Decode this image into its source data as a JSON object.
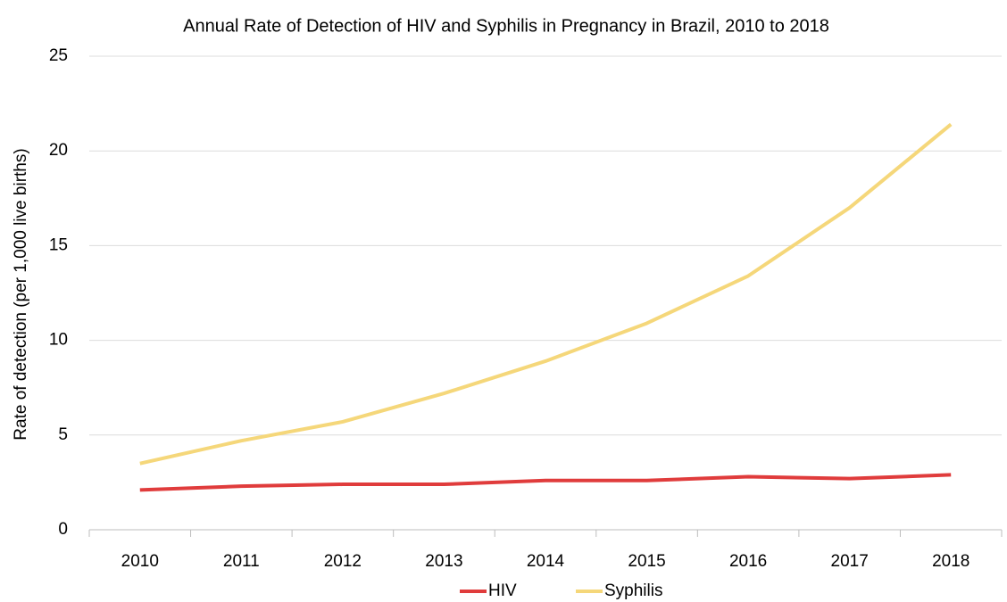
{
  "chart_data": {
    "type": "line",
    "title": "Annual Rate of Detection of HIV and Syphilis in Pregnancy in Brazil, 2010 to 2018",
    "y_label": "Rate of detection (per 1,000 live births)",
    "categories": [
      "2010",
      "2011",
      "2012",
      "2013",
      "2014",
      "2015",
      "2016",
      "2017",
      "2018"
    ],
    "series": [
      {
        "name": "HIV",
        "color": "#e03c3c",
        "values": [
          2.1,
          2.3,
          2.4,
          2.4,
          2.6,
          2.6,
          2.8,
          2.7,
          2.9
        ]
      },
      {
        "name": "Syphilis",
        "color": "#f5d77a",
        "values": [
          3.5,
          4.7,
          5.7,
          7.2,
          8.9,
          10.9,
          13.4,
          17.0,
          21.4
        ]
      }
    ],
    "ylim": [
      0,
      25
    ],
    "yticks": [
      0,
      5,
      10,
      15,
      20,
      25
    ],
    "grid": true,
    "legend": "bottom"
  }
}
